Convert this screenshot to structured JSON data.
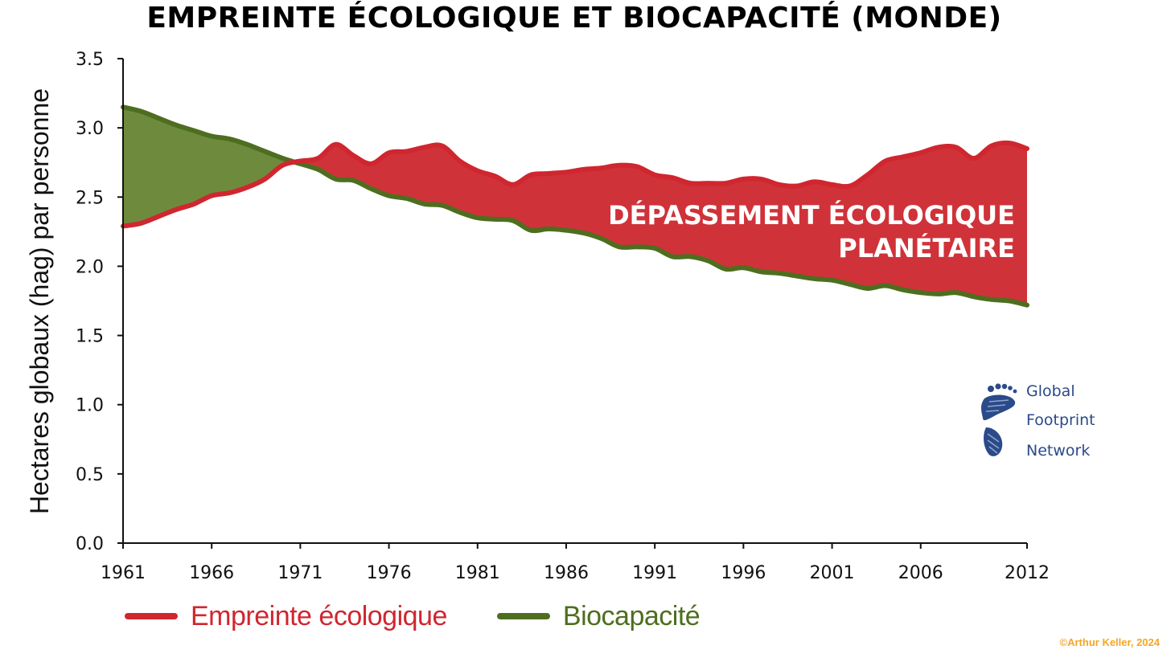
{
  "chart_data": {
    "type": "area",
    "title": "EMPREINTE ÉCOLOGIQUE ET BIOCAPACITÉ (MONDE)",
    "ylabel": "Hectares globaux (hag) par personne",
    "xlabel": "",
    "xlim": [
      1961,
      2012
    ],
    "ylim": [
      0,
      3.5
    ],
    "x_ticks": [
      "1961",
      "1966",
      "1971",
      "1976",
      "1981",
      "1986",
      "1991",
      "1996",
      "2001",
      "2006",
      "2012"
    ],
    "y_ticks": [
      "0.0",
      "0.5",
      "1.0",
      "1.5",
      "2.0",
      "2.5",
      "3.0",
      "3.5"
    ],
    "x": [
      1961,
      1962,
      1963,
      1964,
      1965,
      1966,
      1967,
      1968,
      1969,
      1970,
      1971,
      1972,
      1973,
      1974,
      1975,
      1976,
      1977,
      1978,
      1979,
      1980,
      1981,
      1982,
      1983,
      1984,
      1985,
      1986,
      1987,
      1988,
      1989,
      1990,
      1991,
      1992,
      1993,
      1994,
      1995,
      1996,
      1997,
      1998,
      1999,
      2000,
      2001,
      2002,
      2003,
      2004,
      2005,
      2006,
      2007,
      2008,
      2009,
      2010,
      2011,
      2012
    ],
    "series": [
      {
        "name": "Empreinte écologique",
        "color": "#d0262f",
        "values": [
          2.29,
          2.31,
          2.36,
          2.41,
          2.45,
          2.51,
          2.53,
          2.57,
          2.63,
          2.73,
          2.76,
          2.78,
          2.88,
          2.8,
          2.74,
          2.82,
          2.83,
          2.86,
          2.87,
          2.76,
          2.69,
          2.65,
          2.59,
          2.66,
          2.67,
          2.68,
          2.7,
          2.71,
          2.73,
          2.72,
          2.66,
          2.64,
          2.6,
          2.6,
          2.6,
          2.63,
          2.63,
          2.59,
          2.58,
          2.61,
          2.59,
          2.58,
          2.66,
          2.76,
          2.79,
          2.82,
          2.86,
          2.86,
          2.78,
          2.87,
          2.89,
          2.85
        ]
      },
      {
        "name": "Biocapacité",
        "color": "#4e6e1f",
        "values": [
          3.15,
          3.12,
          3.07,
          3.02,
          2.98,
          2.94,
          2.92,
          2.88,
          2.83,
          2.78,
          2.74,
          2.7,
          2.63,
          2.62,
          2.56,
          2.51,
          2.49,
          2.45,
          2.44,
          2.39,
          2.35,
          2.34,
          2.33,
          2.26,
          2.27,
          2.26,
          2.24,
          2.2,
          2.14,
          2.14,
          2.13,
          2.07,
          2.07,
          2.04,
          1.98,
          1.99,
          1.96,
          1.95,
          1.93,
          1.91,
          1.9,
          1.87,
          1.84,
          1.86,
          1.83,
          1.81,
          1.8,
          1.81,
          1.78,
          1.76,
          1.75,
          1.72
        ]
      }
    ],
    "annotation": [
      "DÉPASSEMENT ÉCOLOGIQUE",
      "PLANÉTAIRE"
    ],
    "fill_colors": {
      "overshoot": "#d0323a",
      "reserve": "#6e8b3d"
    },
    "legend_position": "bottom-left"
  },
  "logo": {
    "lines": [
      "Global",
      "Footprint",
      "Network"
    ],
    "color": "#2a4a8a"
  },
  "credit": "©Arthur Keller, 2024"
}
